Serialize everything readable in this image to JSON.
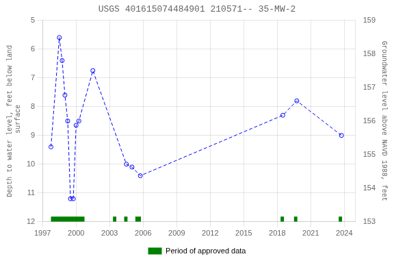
{
  "chart_data": {
    "type": "line",
    "title": "USGS 401615074484901 210571-- 35-MW-2",
    "y_label": "Depth to water level, feet below land\n surface",
    "y2_label": "Groundwater level above NAVD 1988, feet",
    "x": [
      1997.75,
      1998.5,
      1998.75,
      1999.0,
      1999.25,
      1999.5,
      1999.75,
      2000.0,
      2000.25,
      2001.5,
      2004.5,
      2005.0,
      2005.75,
      2018.5,
      2019.75,
      2023.75
    ],
    "series": [
      {
        "color": "#0000ff",
        "line_style": "dashed",
        "marker": "circle",
        "values": [
          9.4,
          5.6,
          6.4,
          7.6,
          8.5,
          11.2,
          11.2,
          8.65,
          8.5,
          6.75,
          10.0,
          10.1,
          10.4,
          8.3,
          7.8,
          9.0
        ]
      }
    ],
    "periods": {
      "name": "Period of approved data",
      "color": "#008000",
      "y": 12.0,
      "height": 0.18,
      "ranges": [
        [
          1997.75,
          2000.75
        ],
        [
          2003.3,
          2003.6
        ],
        [
          2004.3,
          2004.6
        ],
        [
          2005.3,
          2005.8
        ],
        [
          2018.3,
          2018.6
        ],
        [
          2019.5,
          2019.8
        ],
        [
          2023.5,
          2023.8
        ]
      ]
    },
    "xlim": [
      1997,
      2025
    ],
    "xticks": [
      1997,
      2000,
      2003,
      2006,
      2009,
      2012,
      2015,
      2018,
      2021,
      2024
    ],
    "ylim": [
      12.0,
      5.0
    ],
    "yticks": [
      5,
      6,
      7,
      8,
      9,
      10,
      11,
      12
    ],
    "y2lim": [
      153.0,
      159.0
    ],
    "y2ticks": [
      153,
      154,
      155,
      156,
      157,
      158,
      159
    ],
    "grid": true,
    "legend": "bottom"
  }
}
